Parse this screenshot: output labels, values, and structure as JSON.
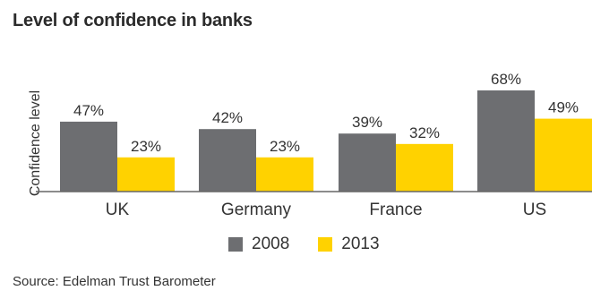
{
  "title": "Level of confidence in banks",
  "source": "Source: Edelman Trust Barometer",
  "chart_data": {
    "type": "bar",
    "title": "Level of confidence in banks",
    "ylabel": "Confidence level",
    "xlabel": "",
    "categories": [
      "UK",
      "Germany",
      "France",
      "US"
    ],
    "series": [
      {
        "name": "2008",
        "values": [
          47,
          42,
          39,
          68
        ],
        "labels": [
          "47%",
          "42%",
          "39%",
          "68%"
        ],
        "color": "#6d6e71"
      },
      {
        "name": "2013",
        "values": [
          23,
          23,
          32,
          49
        ],
        "labels": [
          "23%",
          "23%",
          "32%",
          "49%"
        ],
        "color": "#ffd200"
      }
    ],
    "ylim": [
      0,
      68
    ],
    "grid": false,
    "legend": "bottom"
  }
}
